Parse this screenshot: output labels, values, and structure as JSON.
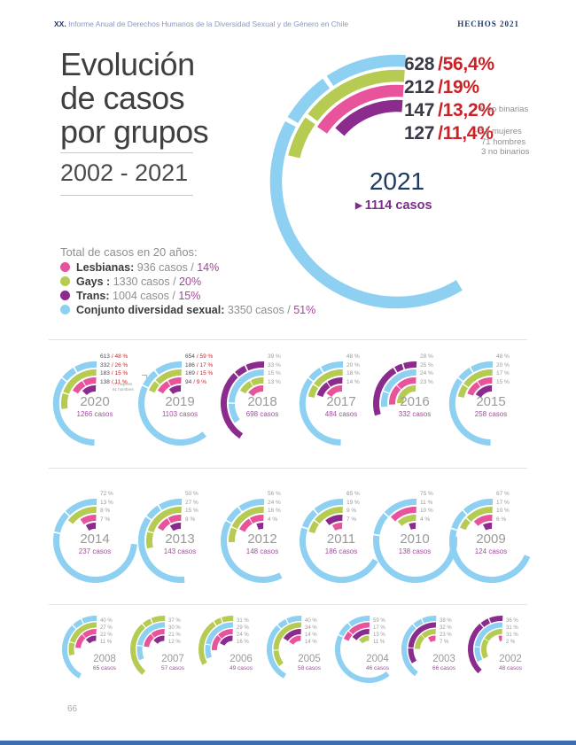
{
  "header": {
    "prefix": "XX.",
    "title": " Informe Anual de Derechos Humanos de la Diversidad Sexual y de Género en Chile",
    "right": "HECHOS 2021"
  },
  "page_title": {
    "line1": "Evolución",
    "line2": "de casos",
    "line3": "por grupos",
    "range": "2002 - 2021"
  },
  "colors": {
    "conjunto": "#8dd0f2",
    "gays": "#b5cb52",
    "lesbianas": "#e8549b",
    "trans": "#8b2b8d",
    "accent_red": "#cc2127",
    "navy": "#1f3864",
    "casos_purple": "#9e4f9d",
    "gray_label": "#9a9a9a",
    "footer_bar": "#3e6db5"
  },
  "legend": {
    "title": "Total de casos en 20 años:",
    "items": [
      {
        "color": "#e8549b",
        "label": "Lesbianas:",
        "text": " 936 casos / ",
        "pct": "14%"
      },
      {
        "color": "#b5cb52",
        "label": "Gays :",
        "text": " 1330 casos / ",
        "pct": "20%"
      },
      {
        "color": "#8b2b8d",
        "label": "Trans:",
        "text": " 1004 casos / ",
        "pct": "15%"
      },
      {
        "color": "#8dd0f2",
        "label": "Conjunto diversidad sexual:",
        "text": " 3350 casos / ",
        "pct": "51%"
      }
    ]
  },
  "chart_data": {
    "type": "pie",
    "title": "Evolución de casos por grupos 2002 - 2021",
    "groups_legend": [
      "Lesbianas",
      "Gays",
      "Trans",
      "Conjunto diversidad sexual"
    ],
    "featured": {
      "year": "2021",
      "cases": "1114 casos",
      "rings": [
        {
          "group": "conjunto",
          "value": "628",
          "pct": "/56,4%",
          "pct_num": 56.4
        },
        {
          "group": "gays",
          "value": "212",
          "pct": "/19%",
          "pct_num": 19
        },
        {
          "group": "lesbianas",
          "value": "147",
          "pct": "/13,2%",
          "pct_num": 13.2,
          "note": "· 6 no binarias"
        },
        {
          "group": "trans",
          "value": "127",
          "pct": "/11,4%",
          "pct_num": 11.4,
          "note_lines": [
            "· 53 mujeres",
            "71 hombres",
            "3 no binarios"
          ]
        }
      ]
    },
    "years": [
      {
        "year": "2020",
        "cases": "1266 casos",
        "note_lines": [
          "77 mujeres",
          "61 hombres"
        ],
        "rings": [
          {
            "group": "conjunto",
            "pct_num": 48,
            "value": "613",
            "pct": "/ 48 %"
          },
          {
            "group": "gays",
            "pct_num": 26,
            "value": "332",
            "pct": "/ 26 %"
          },
          {
            "group": "lesbianas",
            "pct_num": 15,
            "value": "183",
            "pct": "/ 15 %"
          },
          {
            "group": "trans",
            "pct_num": 11,
            "value": "138",
            "pct": "/ 11 %"
          }
        ]
      },
      {
        "year": "2019",
        "cases": "1103 casos",
        "rings": [
          {
            "group": "conjunto",
            "pct_num": 59,
            "value": "654",
            "pct": "/ 59 %"
          },
          {
            "group": "gays",
            "pct_num": 17,
            "value": "186",
            "pct": "/ 17 %"
          },
          {
            "group": "lesbianas",
            "pct_num": 15,
            "value": "169",
            "pct": "/ 15 %"
          },
          {
            "group": "trans",
            "pct_num": 9,
            "value": "94",
            "pct": "/ 9 %"
          }
        ]
      },
      {
        "year": "2018",
        "cases": "698 casos",
        "rings": [
          {
            "group": "trans",
            "pct_num": 39,
            "pct": "39 %"
          },
          {
            "group": "conjunto",
            "pct_num": 33,
            "pct": "33 %"
          },
          {
            "group": "gays",
            "pct_num": 15,
            "pct": "15 %"
          },
          {
            "group": "lesbianas",
            "pct_num": 13,
            "pct": "13 %"
          }
        ]
      },
      {
        "year": "2017",
        "cases": "484 casos",
        "rings": [
          {
            "group": "conjunto",
            "pct_num": 48,
            "pct": "48 %"
          },
          {
            "group": "gays",
            "pct_num": 20,
            "pct": "20 %"
          },
          {
            "group": "trans",
            "pct_num": 18,
            "pct": "18 %"
          },
          {
            "group": "lesbianas",
            "pct_num": 14,
            "pct": "14 %"
          }
        ]
      },
      {
        "year": "2016",
        "cases": "332 casos",
        "rings": [
          {
            "group": "trans",
            "pct_num": 28,
            "pct": "28 %"
          },
          {
            "group": "conjunto",
            "pct_num": 25,
            "pct": "25 %"
          },
          {
            "group": "lesbianas",
            "pct_num": 24,
            "pct": "24 %"
          },
          {
            "group": "gays",
            "pct_num": 23,
            "pct": "23 %"
          }
        ]
      },
      {
        "year": "2015",
        "cases": "258 casos",
        "rings": [
          {
            "group": "conjunto",
            "pct_num": 48,
            "pct": "48 %"
          },
          {
            "group": "gays",
            "pct_num": 20,
            "pct": "20 %"
          },
          {
            "group": "lesbianas",
            "pct_num": 17,
            "pct": "17 %"
          },
          {
            "group": "trans",
            "pct_num": 15,
            "pct": "15 %"
          }
        ]
      },
      {
        "year": "2014",
        "cases": "237 casos",
        "rings": [
          {
            "group": "conjunto",
            "pct_num": 72,
            "pct": "72 %"
          },
          {
            "group": "gays",
            "pct_num": 13,
            "pct": "13 %"
          },
          {
            "group": "lesbianas",
            "pct_num": 8,
            "pct": "8 %"
          },
          {
            "group": "trans",
            "pct_num": 7,
            "pct": "7 %"
          }
        ]
      },
      {
        "year": "2013",
        "cases": "143 casos",
        "rings": [
          {
            "group": "conjunto",
            "pct_num": 50,
            "pct": "50 %"
          },
          {
            "group": "gays",
            "pct_num": 27,
            "pct": "27 %"
          },
          {
            "group": "lesbianas",
            "pct_num": 15,
            "pct": "15 %"
          },
          {
            "group": "trans",
            "pct_num": 8,
            "pct": "8 %"
          }
        ]
      },
      {
        "year": "2012",
        "cases": "148 casos",
        "rings": [
          {
            "group": "conjunto",
            "pct_num": 56,
            "pct": "56 %"
          },
          {
            "group": "gays",
            "pct_num": 24,
            "pct": "24 %"
          },
          {
            "group": "lesbianas",
            "pct_num": 16,
            "pct": "16 %"
          },
          {
            "group": "trans",
            "pct_num": 4,
            "pct": "4 %"
          }
        ]
      },
      {
        "year": "2011",
        "cases": "186 casos",
        "rings": [
          {
            "group": "conjunto",
            "pct_num": 65,
            "pct": "65 %"
          },
          {
            "group": "gays",
            "pct_num": 19,
            "pct": "19 %"
          },
          {
            "group": "trans",
            "pct_num": 9,
            "pct": "9 %"
          },
          {
            "group": "lesbianas",
            "pct_num": 7,
            "pct": "7 %"
          }
        ]
      },
      {
        "year": "2010",
        "cases": "138 casos",
        "rings": [
          {
            "group": "conjunto",
            "pct_num": 75,
            "pct": "75 %"
          },
          {
            "group": "lesbianas",
            "pct_num": 11,
            "pct": "11 %"
          },
          {
            "group": "gays",
            "pct_num": 10,
            "pct": "10 %"
          },
          {
            "group": "trans",
            "pct_num": 4,
            "pct": "4 %"
          }
        ]
      },
      {
        "year": "2009",
        "cases": "124 casos",
        "rings": [
          {
            "group": "conjunto",
            "pct_num": 67,
            "pct": "67 %"
          },
          {
            "group": "gays",
            "pct_num": 17,
            "pct": "17 %"
          },
          {
            "group": "lesbianas",
            "pct_num": 10,
            "pct": "10 %"
          },
          {
            "group": "trans",
            "pct_num": 6,
            "pct": "6 %"
          }
        ]
      },
      {
        "year": "2008",
        "cases": "65 casos",
        "rings": [
          {
            "group": "conjunto",
            "pct_num": 40,
            "pct": "40 %"
          },
          {
            "group": "gays",
            "pct_num": 27,
            "pct": "27 %"
          },
          {
            "group": "lesbianas",
            "pct_num": 22,
            "pct": "22 %"
          },
          {
            "group": "trans",
            "pct_num": 11,
            "pct": "11 %"
          }
        ]
      },
      {
        "year": "2007",
        "cases": "57 casos",
        "rings": [
          {
            "group": "gays",
            "pct_num": 37,
            "pct": "37 %"
          },
          {
            "group": "conjunto",
            "pct_num": 30,
            "pct": "30 %"
          },
          {
            "group": "lesbianas",
            "pct_num": 21,
            "pct": "21 %"
          },
          {
            "group": "trans",
            "pct_num": 12,
            "pct": "12 %"
          }
        ]
      },
      {
        "year": "2006",
        "cases": "49 casos",
        "rings": [
          {
            "group": "gays",
            "pct_num": 31,
            "pct": "31 %"
          },
          {
            "group": "conjunto",
            "pct_num": 29,
            "pct": "29 %"
          },
          {
            "group": "lesbianas",
            "pct_num": 24,
            "pct": "24 %"
          },
          {
            "group": "trans",
            "pct_num": 16,
            "pct": "16 %"
          }
        ]
      },
      {
        "year": "2005",
        "cases": "58 casos",
        "rings": [
          {
            "group": "conjunto",
            "pct_num": 40,
            "pct": "40 %"
          },
          {
            "group": "gays",
            "pct_num": 34,
            "pct": "34 %"
          },
          {
            "group": "trans",
            "pct_num": 14,
            "pct": "14 %"
          },
          {
            "group": "lesbianas",
            "pct_num": 14,
            "pct": "14 %"
          }
        ]
      },
      {
        "year": "2004",
        "cases": "46 casos",
        "rings": [
          {
            "group": "conjunto",
            "pct_num": 59,
            "pct": "59 %"
          },
          {
            "group": "lesbianas",
            "pct_num": 17,
            "pct": "17 %"
          },
          {
            "group": "trans",
            "pct_num": 13,
            "pct": "13 %"
          },
          {
            "group": "gays",
            "pct_num": 11,
            "pct": "11 %"
          }
        ]
      },
      {
        "year": "2003",
        "cases": "66 casos",
        "rings": [
          {
            "group": "conjunto",
            "pct_num": 38,
            "pct": "38 %"
          },
          {
            "group": "trans",
            "pct_num": 32,
            "pct": "32 %"
          },
          {
            "group": "gays",
            "pct_num": 23,
            "pct": "23 %"
          },
          {
            "group": "lesbianas",
            "pct_num": 7,
            "pct": "7 %"
          }
        ]
      },
      {
        "year": "2002",
        "cases": "48 casos",
        "rings": [
          {
            "group": "trans",
            "pct_num": 36,
            "pct": "36 %"
          },
          {
            "group": "conjunto",
            "pct_num": 31,
            "pct": "31 %"
          },
          {
            "group": "gays",
            "pct_num": 31,
            "pct": "31 %"
          },
          {
            "group": "lesbianas",
            "pct_num": 2,
            "pct": "2 %"
          }
        ]
      }
    ]
  },
  "footer": {
    "page_number": "66"
  }
}
